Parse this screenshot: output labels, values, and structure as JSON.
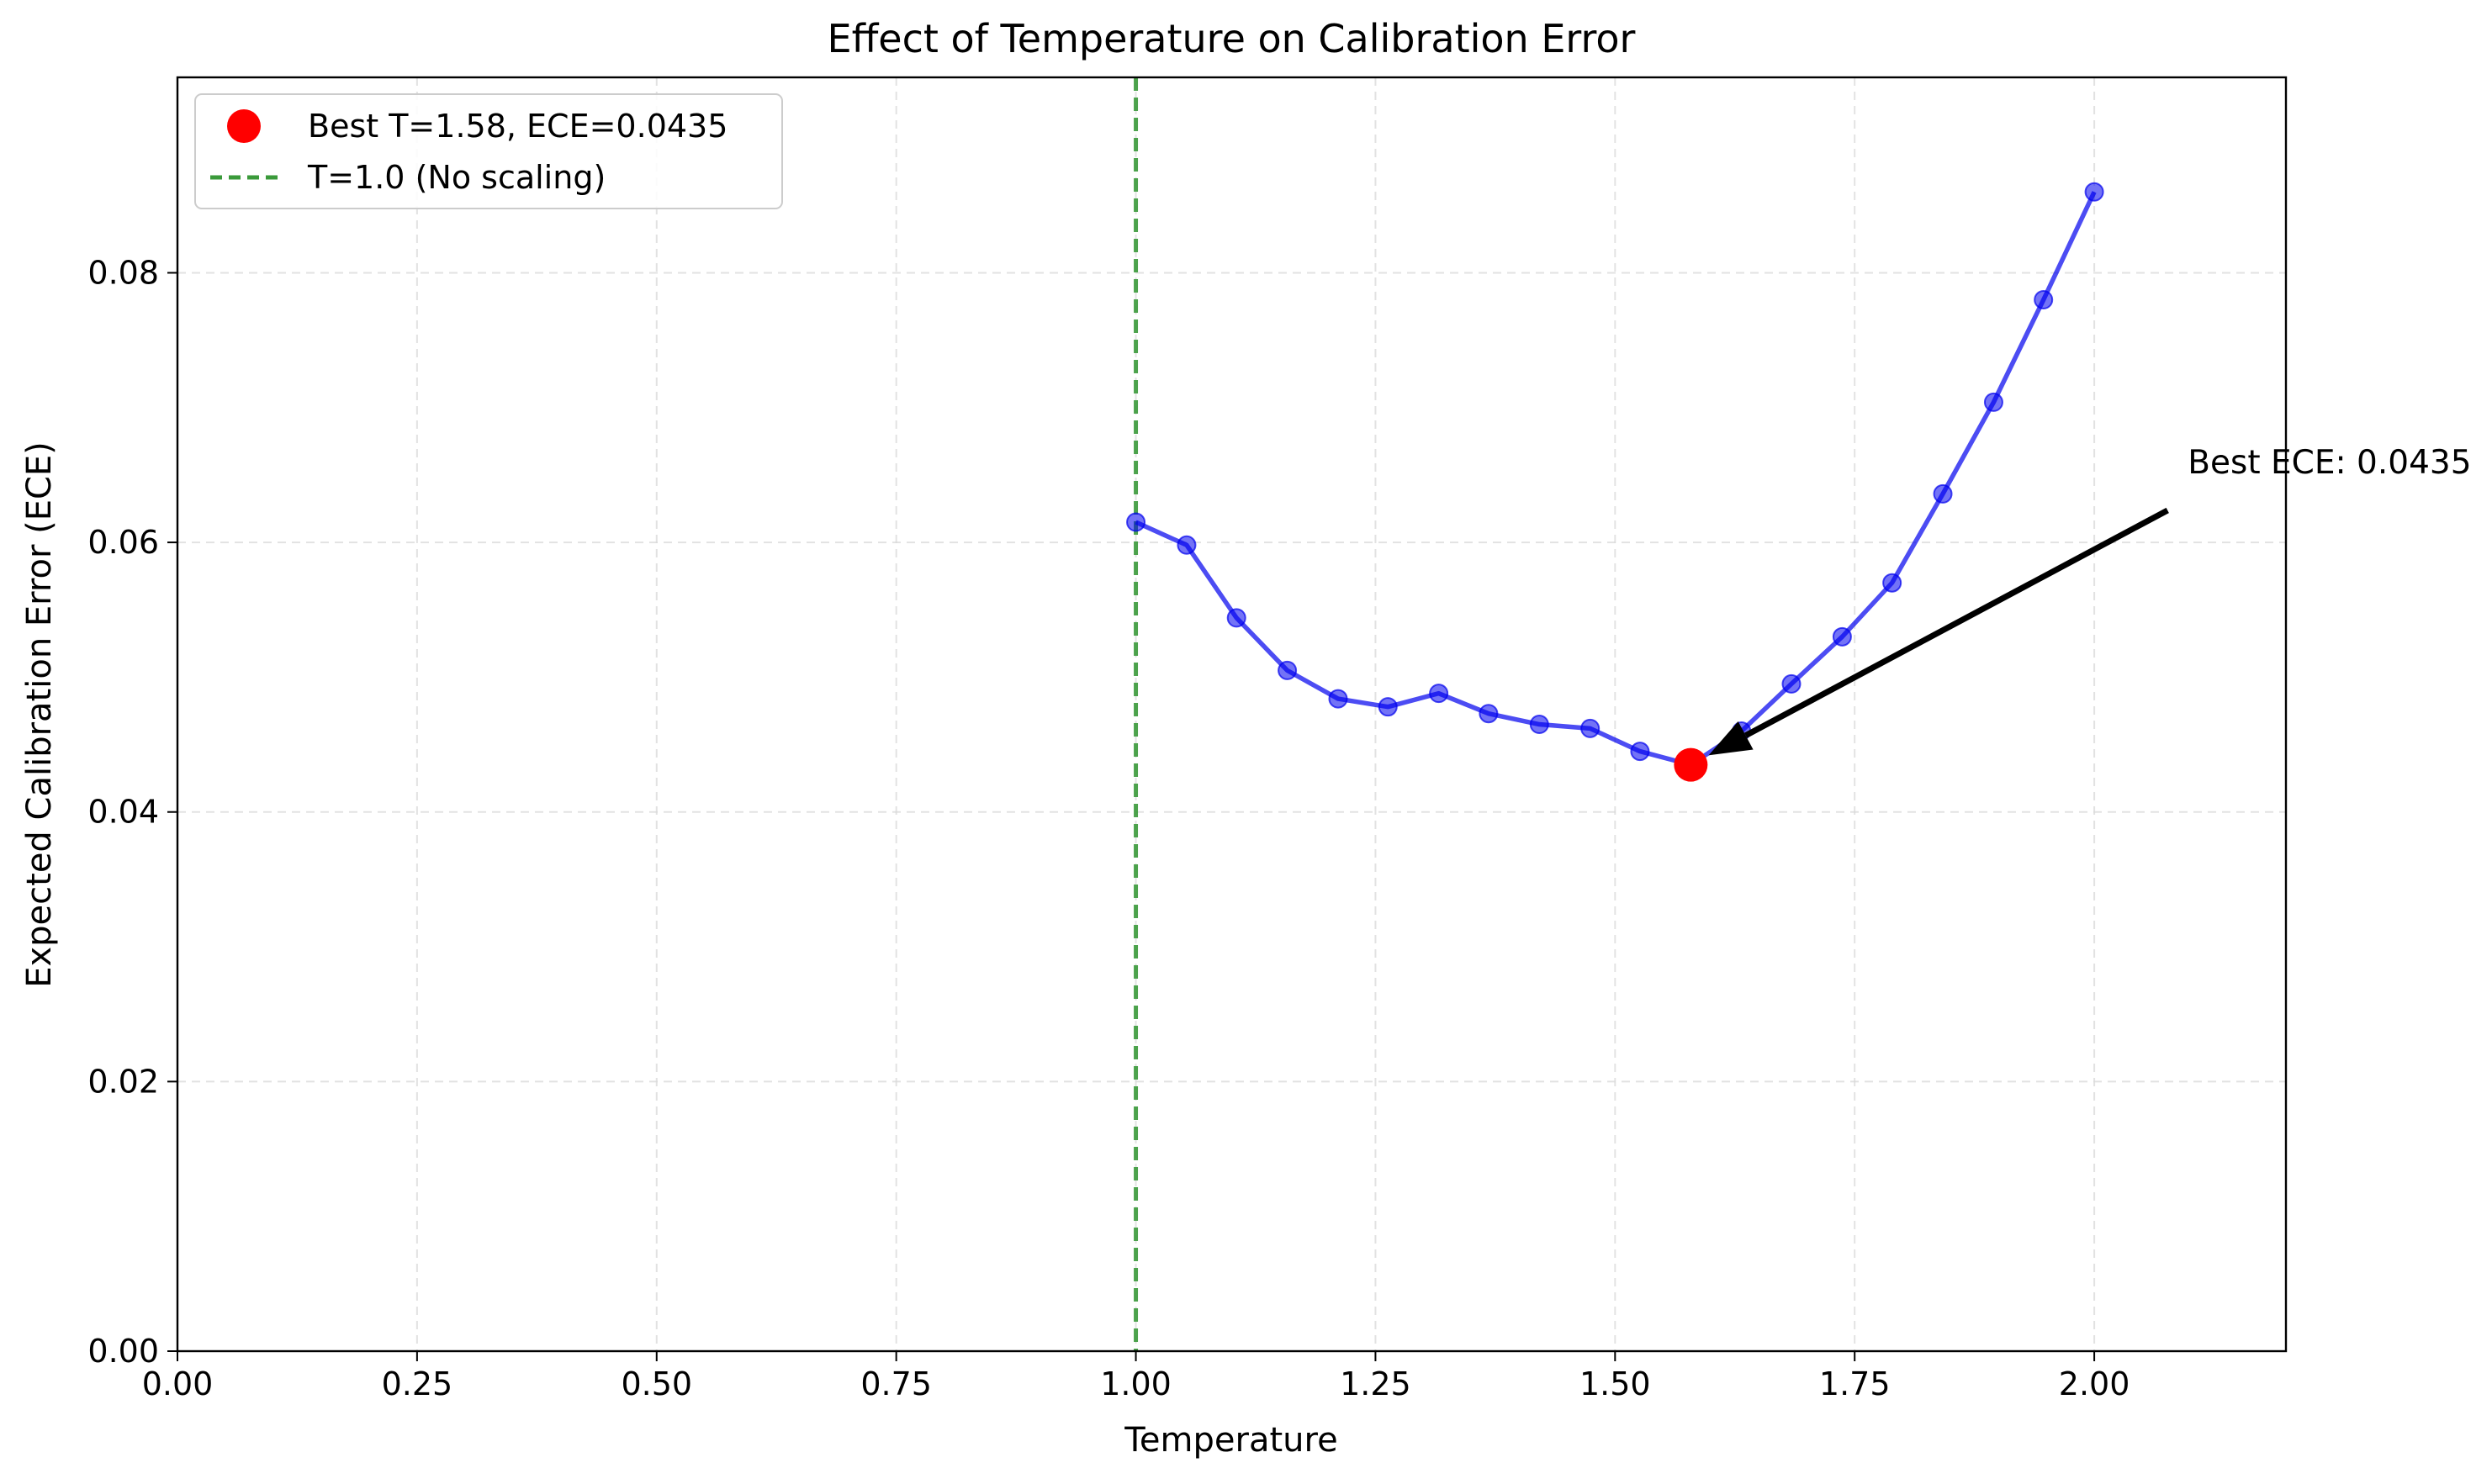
{
  "chart_data": {
    "type": "line",
    "title": "Effect of Temperature on Calibration Error",
    "xlabel": "Temperature",
    "ylabel": "Expected Calibration Error (ECE)",
    "xlim": [
      0,
      2.2
    ],
    "ylim": [
      0,
      0.0945
    ],
    "xticks": [
      0,
      0.25,
      0.5,
      0.75,
      1.0,
      1.25,
      1.5,
      1.75,
      2.0
    ],
    "xtick_labels": [
      "0.00",
      "0.25",
      "0.50",
      "0.75",
      "1.00",
      "1.25",
      "1.50",
      "1.75",
      "2.00"
    ],
    "yticks": [
      0,
      0.02,
      0.04,
      0.06,
      0.08
    ],
    "ytick_labels": [
      "0.00",
      "0.02",
      "0.04",
      "0.06",
      "0.08"
    ],
    "grid": true,
    "legend_position": "top-left",
    "series": [
      {
        "color": "#0000ee",
        "x": [
          1.0,
          1.053,
          1.105,
          1.158,
          1.211,
          1.263,
          1.316,
          1.368,
          1.421,
          1.474,
          1.526,
          1.579,
          1.632,
          1.684,
          1.737,
          1.789,
          1.842,
          1.895,
          1.947,
          2.0
        ],
        "y": [
          0.0615,
          0.0598,
          0.0544,
          0.0505,
          0.0484,
          0.0478,
          0.0488,
          0.0473,
          0.0465,
          0.0462,
          0.0445,
          0.0435,
          0.046,
          0.0495,
          0.053,
          0.057,
          0.0636,
          0.0704,
          0.078,
          0.086
        ]
      }
    ],
    "best_point": {
      "x": 1.579,
      "y": 0.0435,
      "color": "#ff0000",
      "legend_label": "Best T=1.58, ECE=0.0435"
    },
    "reference_line": {
      "x": 1.0,
      "color": "#3a9a3a",
      "legend_label": "T=1.0 (No scaling)"
    },
    "annotation": {
      "text": "Best ECE: 0.0435",
      "point": [
        1.579,
        0.0435
      ],
      "text_at": [
        2.08,
        0.0635
      ]
    }
  }
}
